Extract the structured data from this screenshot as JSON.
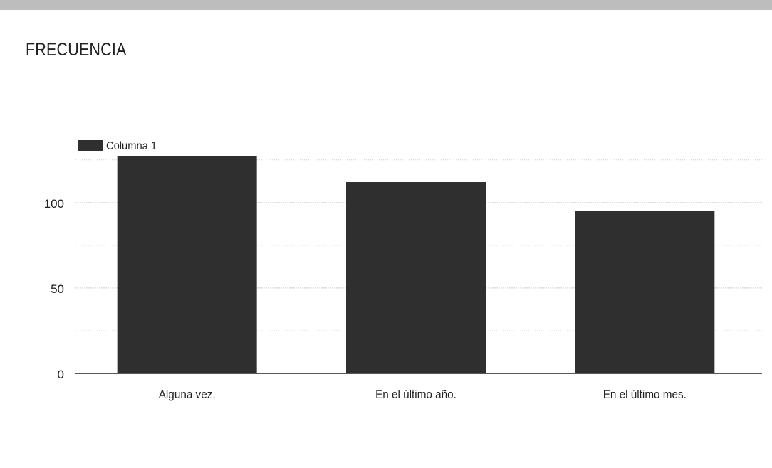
{
  "chart_data": {
    "type": "bar",
    "title": "FRECUENCIA",
    "xlabel": "",
    "ylabel": "",
    "categories": [
      "Alguna vez.",
      "En el último año.",
      "En el último mes."
    ],
    "series": [
      {
        "name": "Columna 1",
        "values": [
          127,
          112,
          95
        ]
      }
    ],
    "ylim": [
      0,
      127
    ],
    "yticks": [
      0,
      50,
      100
    ],
    "grid": true,
    "legend": "top-left",
    "colors": {
      "bar": "#2f2f2f",
      "grid": "#cfcfcf",
      "axis": "#222222"
    }
  }
}
